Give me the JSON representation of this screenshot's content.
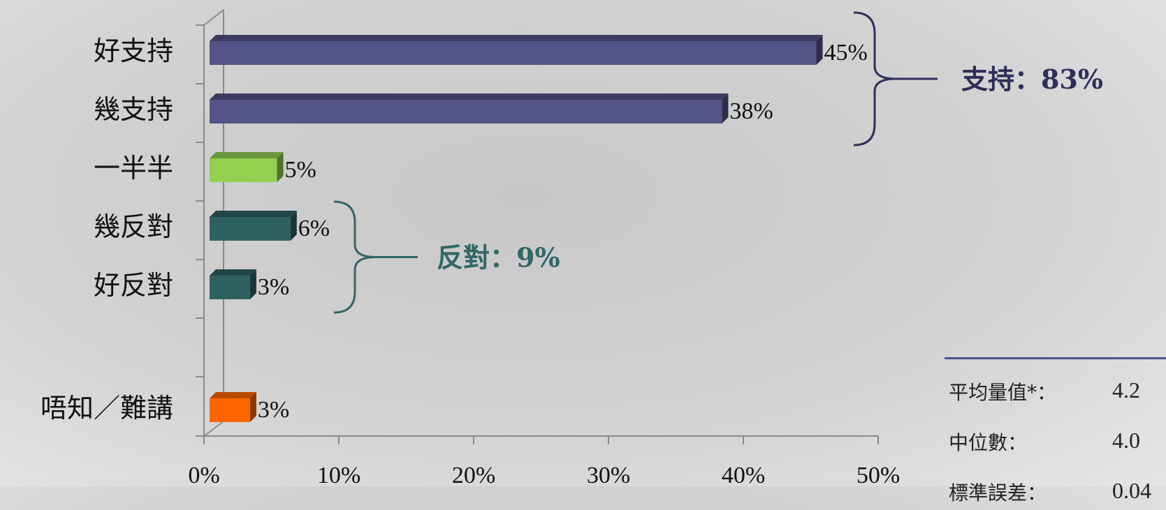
{
  "chart_data": {
    "type": "bar",
    "orientation": "horizontal",
    "categories": [
      "好支持",
      "幾支持",
      "一半半",
      "幾反對",
      "好反對",
      "唔知／難講"
    ],
    "values": [
      45,
      38,
      5,
      6,
      3,
      3
    ],
    "value_labels": [
      "45%",
      "38%",
      "5%",
      "6%",
      "3%",
      "3%"
    ],
    "bar_colors": [
      "#545486",
      "#545486",
      "#92d050",
      "#2f6060",
      "#2f6060",
      "#ff6600"
    ],
    "xlim": [
      0,
      50
    ],
    "x_ticks": [
      "0%",
      "10%",
      "20%",
      "30%",
      "40%",
      "50%"
    ],
    "groups": [
      {
        "label": "支持：83%",
        "color": "#2e2f5a",
        "members": [
          0,
          1
        ]
      },
      {
        "label": "反對：9%",
        "color": "#336666",
        "members": [
          3,
          4
        ]
      }
    ]
  },
  "stats": [
    {
      "name": "平均量值*：",
      "value": "4.2"
    },
    {
      "name": "中位數：",
      "value": "4.0"
    },
    {
      "name": "標準誤差：",
      "value": "0.04"
    }
  ]
}
